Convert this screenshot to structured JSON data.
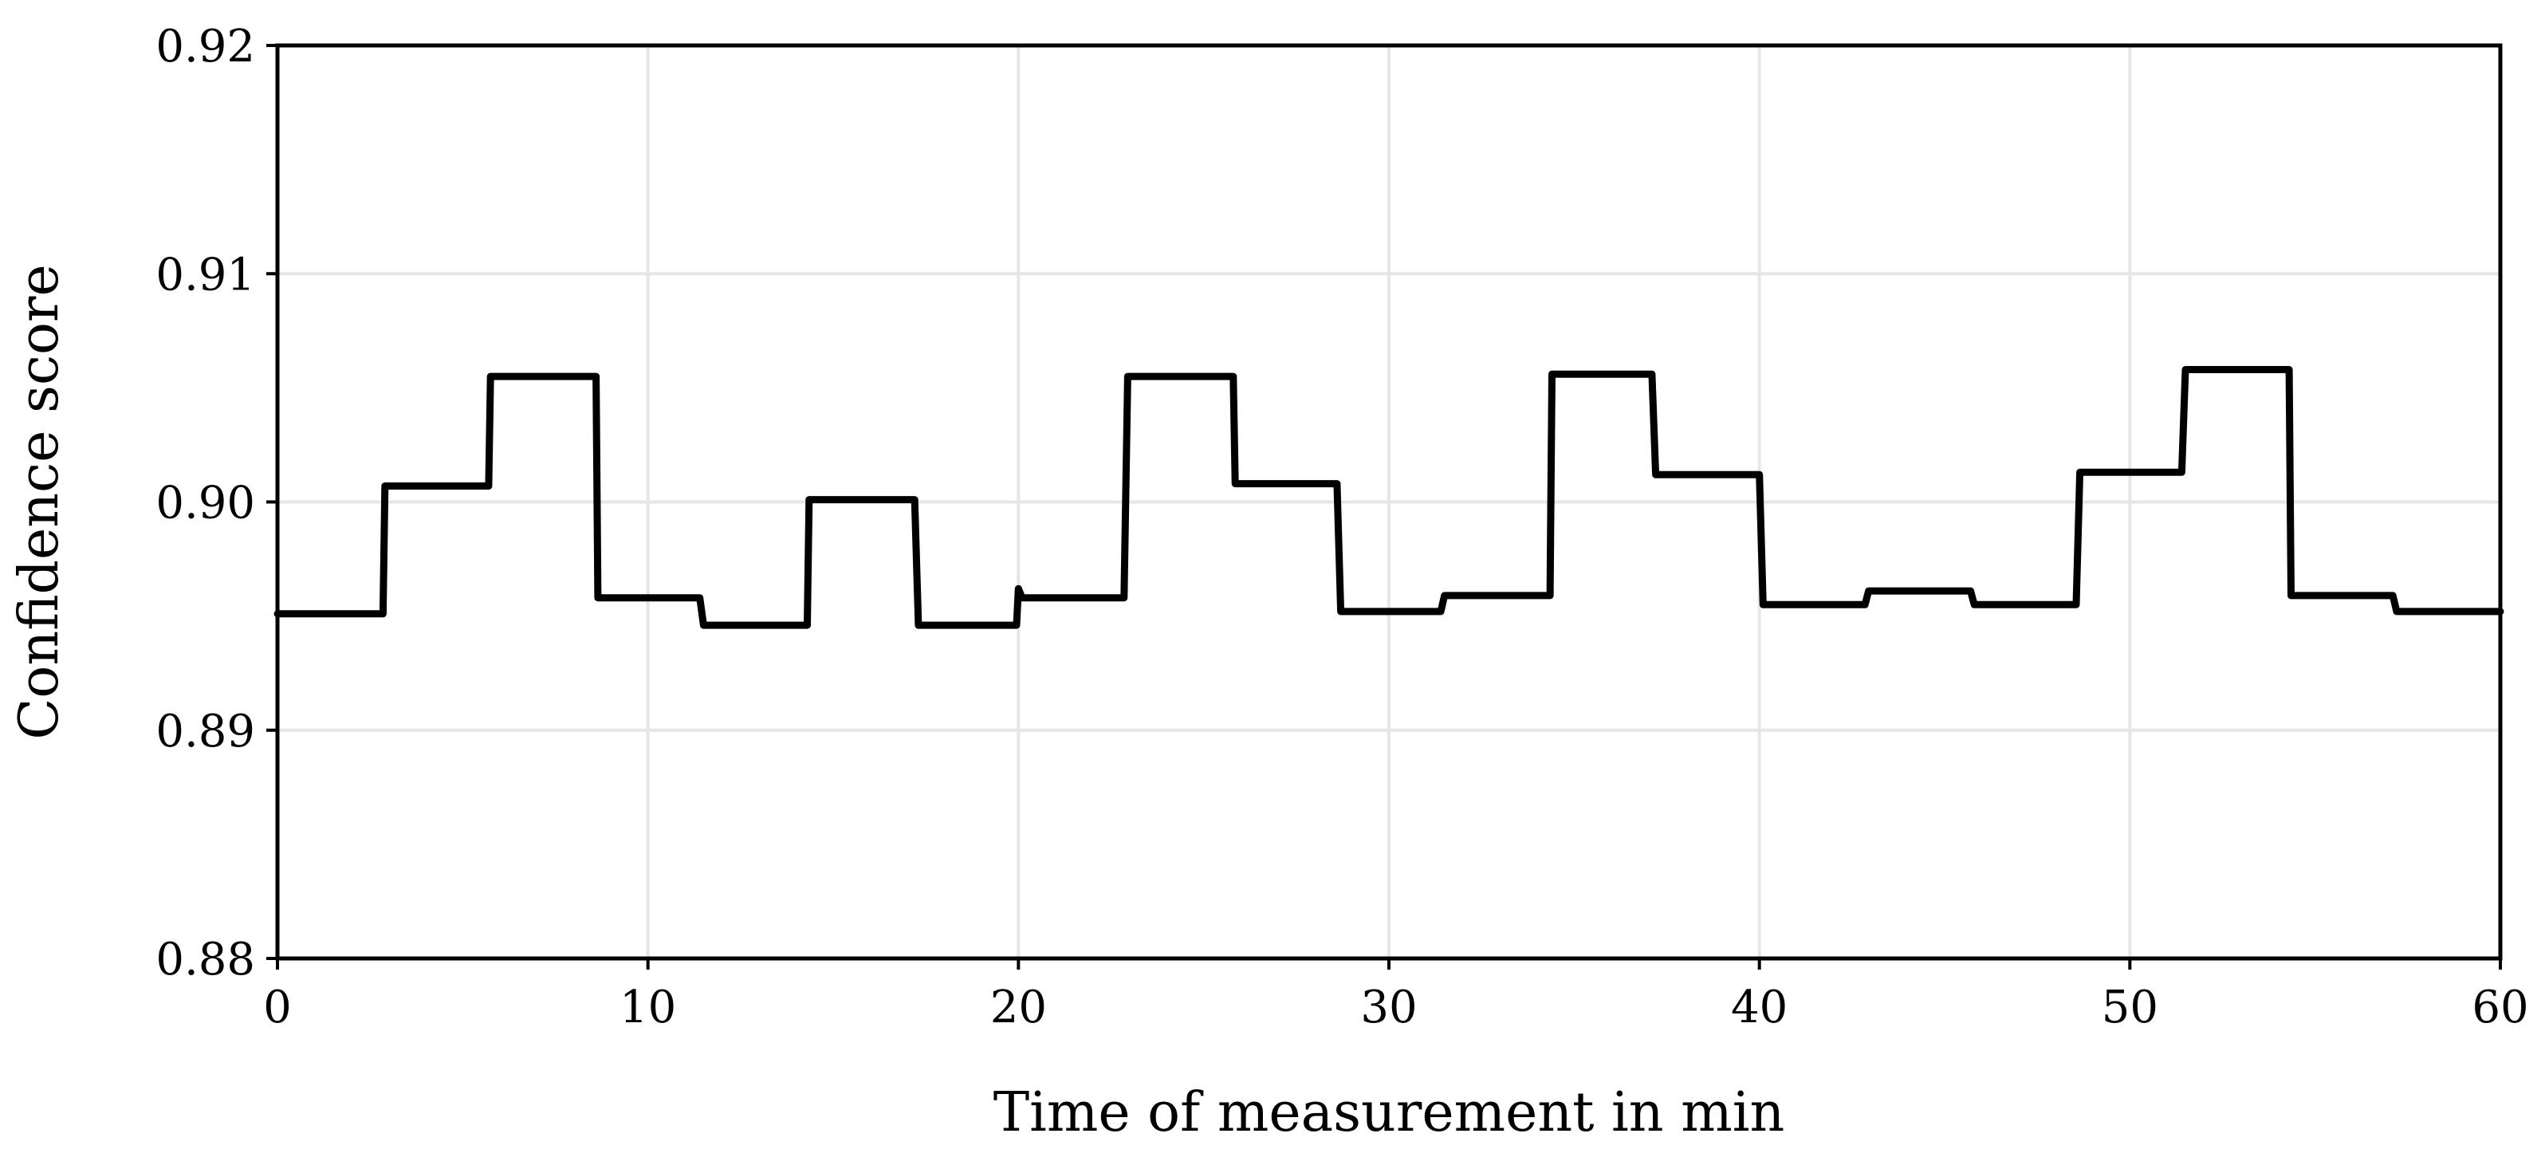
{
  "chart_data": {
    "type": "line",
    "title": "",
    "xlabel": "Time of measurement in min",
    "ylabel": "Confidence score",
    "xlim": [
      0,
      60
    ],
    "ylim": [
      0.88,
      0.92
    ],
    "xticks": [
      0,
      10,
      20,
      30,
      40,
      50,
      60
    ],
    "xtick_labels": [
      "0",
      "10",
      "20",
      "30",
      "40",
      "50",
      "60"
    ],
    "yticks": [
      0.88,
      0.89,
      0.9,
      0.91,
      0.92
    ],
    "ytick_labels": [
      "0.88",
      "0.89",
      "0.90",
      "0.91",
      "0.92"
    ],
    "grid": true,
    "line_color": "#000000",
    "grid_color": "#e6e6e6",
    "series": [
      {
        "x": [
          0,
          2.85,
          2.9,
          5.7,
          5.75,
          8.6,
          8.65,
          11.4,
          11.5,
          14.3,
          14.35,
          17.2,
          17.3,
          19.95,
          20.0,
          20.1,
          22.85,
          22.95,
          25.8,
          25.85,
          28.6,
          28.7,
          31.4,
          31.5,
          34.35,
          34.4,
          37.1,
          37.2,
          40.0,
          40.1,
          42.85,
          42.95,
          45.7,
          45.8,
          48.55,
          48.65,
          51.4,
          51.5,
          54.3,
          54.35,
          57.1,
          57.2,
          60.0
        ],
        "y": [
          0.8951,
          0.8951,
          0.9007,
          0.9007,
          0.9055,
          0.9055,
          0.8958,
          0.8958,
          0.8946,
          0.8946,
          0.9001,
          0.9001,
          0.8946,
          0.8946,
          0.8962,
          0.8958,
          0.8958,
          0.9055,
          0.9055,
          0.9008,
          0.9008,
          0.8952,
          0.8952,
          0.8959,
          0.8959,
          0.9056,
          0.9056,
          0.9012,
          0.9012,
          0.8955,
          0.8955,
          0.8961,
          0.8961,
          0.8955,
          0.8955,
          0.9013,
          0.9013,
          0.9058,
          0.9058,
          0.8959,
          0.8959,
          0.8952,
          0.8952
        ]
      }
    ]
  }
}
